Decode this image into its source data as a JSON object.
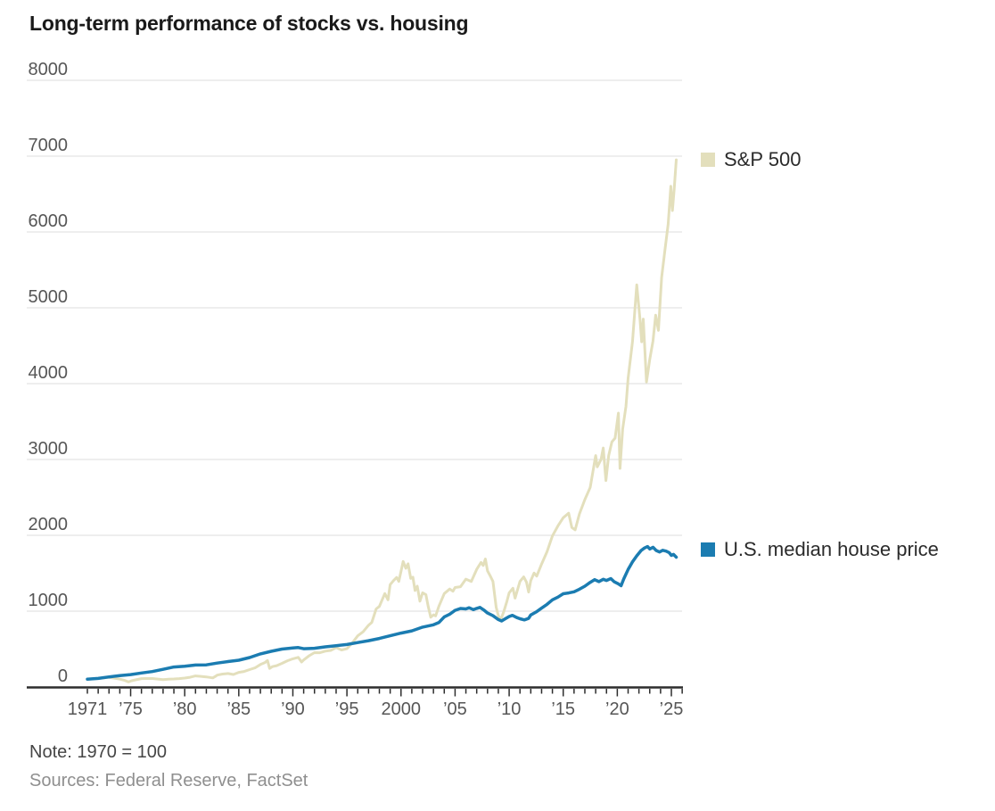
{
  "chart_data": {
    "type": "line",
    "title": "Long-term performance of stocks vs. housing",
    "note": "Note: 1970 = 100",
    "sources": "Sources: Federal Reserve, FactSet",
    "grid": true,
    "legend_position": "right",
    "x_axis": {
      "min": 1971,
      "max": 2026,
      "ticks": [
        {
          "year": 1971,
          "label": "1971"
        },
        {
          "year": 1975,
          "label": "’75"
        },
        {
          "year": 1980,
          "label": "’80"
        },
        {
          "year": 1985,
          "label": "’85"
        },
        {
          "year": 1990,
          "label": "’90"
        },
        {
          "year": 1995,
          "label": "’95"
        },
        {
          "year": 2000,
          "label": "2000"
        },
        {
          "year": 2005,
          "label": "’05"
        },
        {
          "year": 2010,
          "label": "’10"
        },
        {
          "year": 2015,
          "label": "’15"
        },
        {
          "year": 2020,
          "label": "’20"
        },
        {
          "year": 2025,
          "label": "’25"
        }
      ]
    },
    "y_axis": {
      "min": 0,
      "max": 8000,
      "interval": 1000,
      "tick_values": [
        8000,
        7000,
        6000,
        5000,
        4000,
        3000,
        2000,
        1000,
        0
      ]
    },
    "colors": {
      "sp500": "#e3dfbc",
      "housing": "#1b7cb1",
      "gridline": "#e3e3e3",
      "axis_line": "#2d2d2d",
      "axis_text": "#565656",
      "title_text": "#1a1a1a",
      "note_text": "#454545",
      "sources_text": "#8f8f8f",
      "legend_text": "#2b2b2b"
    },
    "series": [
      {
        "name": "S&P 500",
        "key": "sp500",
        "color": "#e3dfbc",
        "width": 3,
        "points": [
          [
            1971,
            100
          ],
          [
            1971.5,
            108
          ],
          [
            1972,
            112
          ],
          [
            1972.5,
            119
          ],
          [
            1973,
            128
          ],
          [
            1973.5,
            115
          ],
          [
            1974,
            104
          ],
          [
            1974.4,
            90
          ],
          [
            1974.8,
            67
          ],
          [
            1975.1,
            82
          ],
          [
            1975.5,
            95
          ],
          [
            1976,
            110
          ],
          [
            1976.5,
            112
          ],
          [
            1977,
            112
          ],
          [
            1977.5,
            105
          ],
          [
            1978,
            97
          ],
          [
            1978.5,
            103
          ],
          [
            1979,
            106
          ],
          [
            1979.5,
            110
          ],
          [
            1980,
            118
          ],
          [
            1980.5,
            128
          ],
          [
            1981,
            146
          ],
          [
            1981.5,
            140
          ],
          [
            1982,
            133
          ],
          [
            1982.6,
            120
          ],
          [
            1982.9,
            145
          ],
          [
            1983,
            156
          ],
          [
            1983.5,
            170
          ],
          [
            1984,
            178
          ],
          [
            1984.5,
            165
          ],
          [
            1985,
            193
          ],
          [
            1985.5,
            205
          ],
          [
            1986,
            230
          ],
          [
            1986.5,
            252
          ],
          [
            1987,
            296
          ],
          [
            1987.4,
            320
          ],
          [
            1987.65,
            350
          ],
          [
            1987.85,
            245
          ],
          [
            1988.1,
            268
          ],
          [
            1988.5,
            281
          ],
          [
            1989,
            312
          ],
          [
            1989.5,
            346
          ],
          [
            1990,
            372
          ],
          [
            1990.5,
            391
          ],
          [
            1990.8,
            330
          ],
          [
            1991,
            356
          ],
          [
            1991.5,
            412
          ],
          [
            1992,
            453
          ],
          [
            1992.5,
            452
          ],
          [
            1993,
            473
          ],
          [
            1993.5,
            482
          ],
          [
            1994,
            519
          ],
          [
            1994.5,
            488
          ],
          [
            1995,
            505
          ],
          [
            1995.5,
            582
          ],
          [
            1996,
            675
          ],
          [
            1996.5,
            728
          ],
          [
            1997,
            815
          ],
          [
            1997.3,
            852
          ],
          [
            1997.7,
            1030
          ],
          [
            1998,
            1062
          ],
          [
            1998.5,
            1232
          ],
          [
            1998.8,
            1150
          ],
          [
            1999,
            1350
          ],
          [
            1999.3,
            1402
          ],
          [
            1999.6,
            1445
          ],
          [
            1999.8,
            1392
          ],
          [
            2000.2,
            1655
          ],
          [
            2000.45,
            1565
          ],
          [
            2000.65,
            1625
          ],
          [
            2000.9,
            1432
          ],
          [
            2001.1,
            1448
          ],
          [
            2001.3,
            1272
          ],
          [
            2001.5,
            1330
          ],
          [
            2001.75,
            1132
          ],
          [
            2002,
            1242
          ],
          [
            2002.3,
            1218
          ],
          [
            2002.5,
            1072
          ],
          [
            2002.75,
            920
          ],
          [
            2003,
            952
          ],
          [
            2003.2,
            938
          ],
          [
            2003.5,
            1062
          ],
          [
            2004,
            1232
          ],
          [
            2004.5,
            1292
          ],
          [
            2004.8,
            1262
          ],
          [
            2005,
            1312
          ],
          [
            2005.5,
            1322
          ],
          [
            2006,
            1422
          ],
          [
            2006.5,
            1392
          ],
          [
            2007,
            1552
          ],
          [
            2007.4,
            1642
          ],
          [
            2007.6,
            1602
          ],
          [
            2007.8,
            1688
          ],
          [
            2008,
            1532
          ],
          [
            2008.3,
            1452
          ],
          [
            2008.5,
            1392
          ],
          [
            2008.8,
            1052
          ],
          [
            2009,
            942
          ],
          [
            2009.2,
            880
          ],
          [
            2009.5,
            992
          ],
          [
            2009.8,
            1132
          ],
          [
            2010,
            1242
          ],
          [
            2010.35,
            1302
          ],
          [
            2010.55,
            1172
          ],
          [
            2011,
            1392
          ],
          [
            2011.35,
            1452
          ],
          [
            2011.6,
            1382
          ],
          [
            2011.8,
            1252
          ],
          [
            2012,
            1402
          ],
          [
            2012.3,
            1502
          ],
          [
            2012.55,
            1462
          ],
          [
            2013,
            1622
          ],
          [
            2013.5,
            1782
          ],
          [
            2014,
            1992
          ],
          [
            2014.5,
            2122
          ],
          [
            2015,
            2232
          ],
          [
            2015.5,
            2292
          ],
          [
            2015.8,
            2102
          ],
          [
            2016.1,
            2072
          ],
          [
            2016.5,
            2282
          ],
          [
            2017,
            2472
          ],
          [
            2017.5,
            2632
          ],
          [
            2018,
            3052
          ],
          [
            2018.15,
            2902
          ],
          [
            2018.5,
            3002
          ],
          [
            2018.7,
            3152
          ],
          [
            2018.95,
            2722
          ],
          [
            2019.2,
            3052
          ],
          [
            2019.5,
            3232
          ],
          [
            2019.8,
            3282
          ],
          [
            2020.1,
            3612
          ],
          [
            2020.25,
            2882
          ],
          [
            2020.5,
            3402
          ],
          [
            2020.8,
            3702
          ],
          [
            2021,
            4072
          ],
          [
            2021.4,
            4552
          ],
          [
            2021.8,
            5302
          ],
          [
            2022.1,
            4852
          ],
          [
            2022.25,
            4552
          ],
          [
            2022.4,
            4852
          ],
          [
            2022.7,
            4022
          ],
          [
            2023,
            4322
          ],
          [
            2023.3,
            4562
          ],
          [
            2023.55,
            4902
          ],
          [
            2023.8,
            4702
          ],
          [
            2024.1,
            5402
          ],
          [
            2024.4,
            5752
          ],
          [
            2024.7,
            6102
          ],
          [
            2024.95,
            6602
          ],
          [
            2025.1,
            6282
          ],
          [
            2025.25,
            6552
          ],
          [
            2025.45,
            6952
          ]
        ]
      },
      {
        "name": "U.S. median house price",
        "key": "housing",
        "color": "#1b7cb1",
        "width": 3.5,
        "points": [
          [
            1971,
            103
          ],
          [
            1972,
            113
          ],
          [
            1973,
            133
          ],
          [
            1974,
            150
          ],
          [
            1975,
            164
          ],
          [
            1976,
            185
          ],
          [
            1977,
            204
          ],
          [
            1978,
            233
          ],
          [
            1979,
            263
          ],
          [
            1980,
            274
          ],
          [
            1981,
            290
          ],
          [
            1982,
            292
          ],
          [
            1983,
            315
          ],
          [
            1984,
            335
          ],
          [
            1985,
            353
          ],
          [
            1986,
            388
          ],
          [
            1987,
            437
          ],
          [
            1988,
            470
          ],
          [
            1989,
            500
          ],
          [
            1990,
            514
          ],
          [
            1990.5,
            520
          ],
          [
            1991,
            505
          ],
          [
            1992,
            510
          ],
          [
            1993,
            530
          ],
          [
            1994,
            545
          ],
          [
            1995,
            560
          ],
          [
            1996,
            586
          ],
          [
            1997,
            611
          ],
          [
            1998,
            640
          ],
          [
            1999,
            675
          ],
          [
            2000,
            710
          ],
          [
            2001,
            740
          ],
          [
            2002,
            790
          ],
          [
            2003,
            820
          ],
          [
            2003.5,
            850
          ],
          [
            2004,
            925
          ],
          [
            2004.5,
            960
          ],
          [
            2005,
            1010
          ],
          [
            2005.5,
            1035
          ],
          [
            2006,
            1030
          ],
          [
            2006.3,
            1045
          ],
          [
            2006.7,
            1020
          ],
          [
            2007,
            1037
          ],
          [
            2007.3,
            1050
          ],
          [
            2007.7,
            1010
          ],
          [
            2008,
            975
          ],
          [
            2008.5,
            940
          ],
          [
            2009,
            890
          ],
          [
            2009.3,
            870
          ],
          [
            2009.7,
            905
          ],
          [
            2010,
            930
          ],
          [
            2010.3,
            945
          ],
          [
            2010.7,
            915
          ],
          [
            2011,
            900
          ],
          [
            2011.4,
            885
          ],
          [
            2011.8,
            905
          ],
          [
            2012,
            950
          ],
          [
            2012.5,
            990
          ],
          [
            2013,
            1040
          ],
          [
            2013.5,
            1090
          ],
          [
            2014,
            1150
          ],
          [
            2014.5,
            1185
          ],
          [
            2015,
            1230
          ],
          [
            2015.5,
            1240
          ],
          [
            2016,
            1255
          ],
          [
            2016.5,
            1290
          ],
          [
            2017,
            1330
          ],
          [
            2017.5,
            1380
          ],
          [
            2017.9,
            1415
          ],
          [
            2018.3,
            1390
          ],
          [
            2018.7,
            1420
          ],
          [
            2019,
            1405
          ],
          [
            2019.4,
            1430
          ],
          [
            2019.7,
            1390
          ],
          [
            2020.1,
            1360
          ],
          [
            2020.35,
            1335
          ],
          [
            2020.6,
            1425
          ],
          [
            2021,
            1550
          ],
          [
            2021.4,
            1650
          ],
          [
            2021.8,
            1730
          ],
          [
            2022.2,
            1800
          ],
          [
            2022.5,
            1832
          ],
          [
            2022.8,
            1852
          ],
          [
            2023,
            1820
          ],
          [
            2023.3,
            1842
          ],
          [
            2023.6,
            1800
          ],
          [
            2023.9,
            1780
          ],
          [
            2024.2,
            1802
          ],
          [
            2024.5,
            1792
          ],
          [
            2024.8,
            1772
          ],
          [
            2025,
            1735
          ],
          [
            2025.2,
            1748
          ],
          [
            2025.45,
            1712
          ]
        ]
      }
    ]
  },
  "legend": {
    "sp500": "S&P 500",
    "housing": "U.S. median house price"
  }
}
